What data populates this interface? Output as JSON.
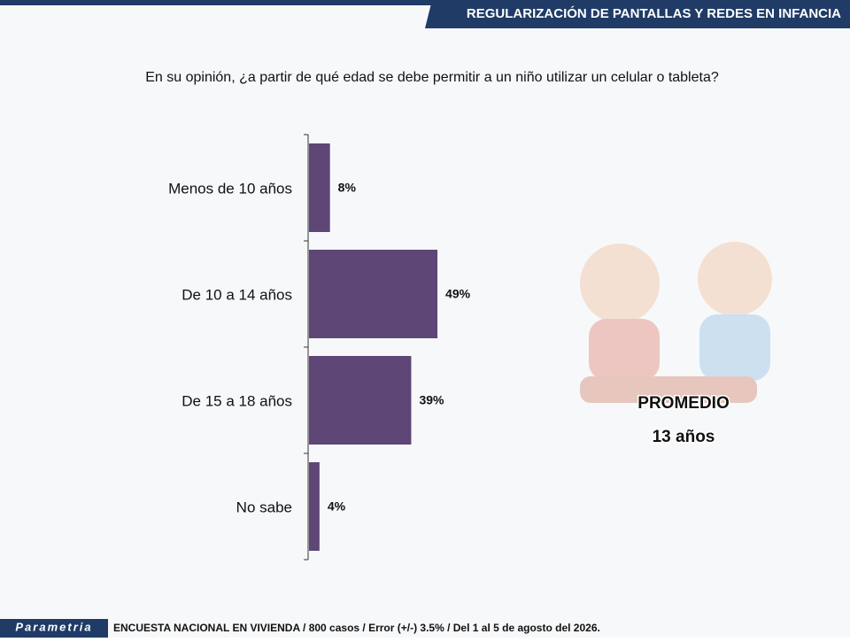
{
  "header": {
    "title": "REGULARIZACIÓN DE PANTALLAS Y REDES EN INFANCIA"
  },
  "chart_data": {
    "type": "bar",
    "orientation": "horizontal",
    "title": "En su opinión, ¿a partir de qué edad se debe permitir a un niño utilizar un celular o tableta?",
    "categories": [
      "Menos de 10 años",
      "De 10 a  14 años",
      "De 15 a  18 años",
      "No sabe"
    ],
    "values": [
      8,
      49,
      39,
      4
    ],
    "value_labels": [
      "8%",
      "49%",
      "39%",
      "4%"
    ],
    "color": "#5e4677"
  },
  "summary": {
    "label": "PROMEDIO",
    "value": "13 años"
  },
  "footer": {
    "logo": "Parametria",
    "note": "ENCUESTA NACIONAL EN VIVIENDA / 800 casos / Error (+/-) 3.5% / Del 1 al 5 de agosto del 2026."
  }
}
